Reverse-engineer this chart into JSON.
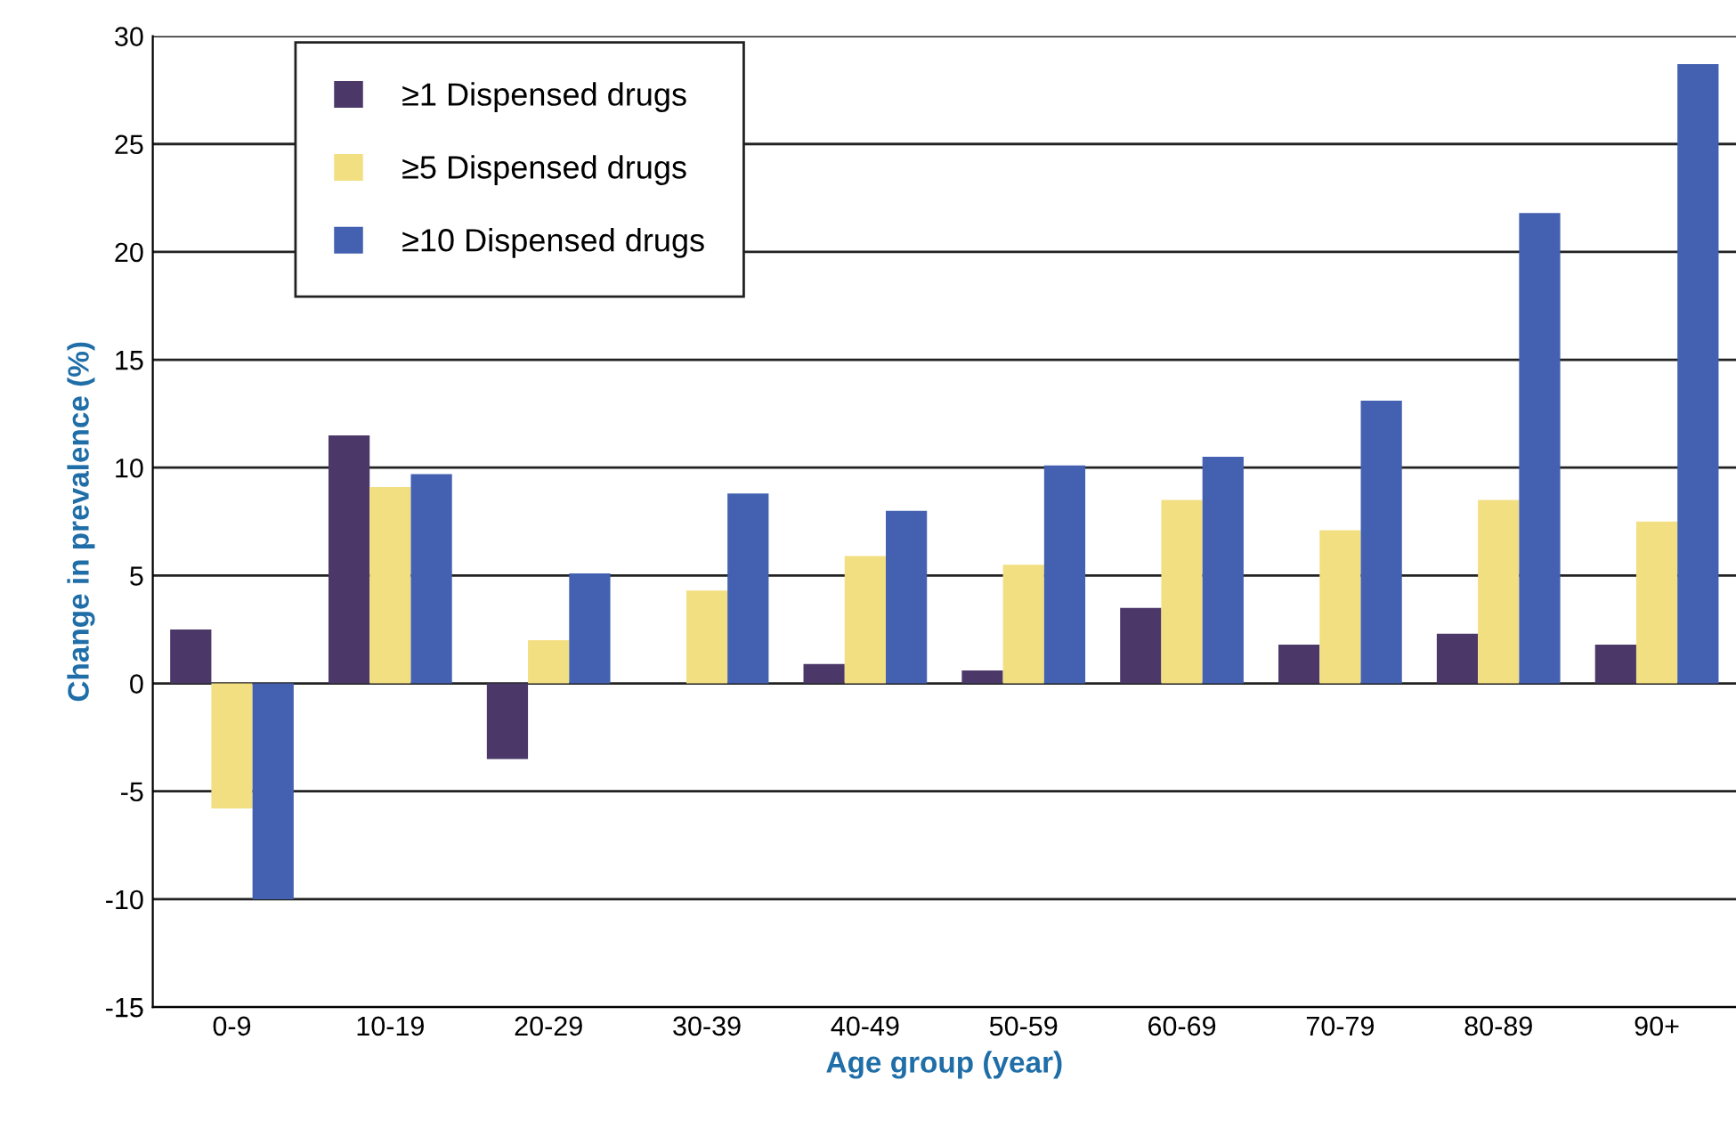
{
  "chart_data": {
    "type": "bar",
    "xlabel": "Age group (year)",
    "ylabel": "Change in prevalence (%)",
    "categories": [
      "0-9",
      "10-19",
      "20-29",
      "30-39",
      "40-49",
      "50-59",
      "60-69",
      "70-79",
      "80-89",
      "90+"
    ],
    "series": [
      {
        "name": "≥1 Dispensed drugs",
        "color": "#4b3868",
        "values": [
          2.5,
          11.5,
          -3.5,
          0,
          0.9,
          0.6,
          3.5,
          1.8,
          2.3,
          1.8
        ]
      },
      {
        "name": "≥5 Dispensed drugs",
        "color": "#f2df82",
        "values": [
          -5.8,
          9.1,
          2.0,
          4.3,
          5.9,
          5.5,
          8.5,
          7.1,
          8.5,
          7.5
        ]
      },
      {
        "name": "≥10 Dispensed drugs",
        "color": "#4361b0",
        "values": [
          -10,
          9.7,
          5.1,
          8.8,
          8.0,
          10.1,
          10.5,
          13.1,
          21.8,
          28.7
        ]
      }
    ],
    "ylim": [
      -15,
      30
    ],
    "yticks": [
      -15,
      -10,
      -5,
      0,
      5,
      10,
      15,
      20,
      25,
      30
    ],
    "grid": "y",
    "legend": "top left"
  }
}
